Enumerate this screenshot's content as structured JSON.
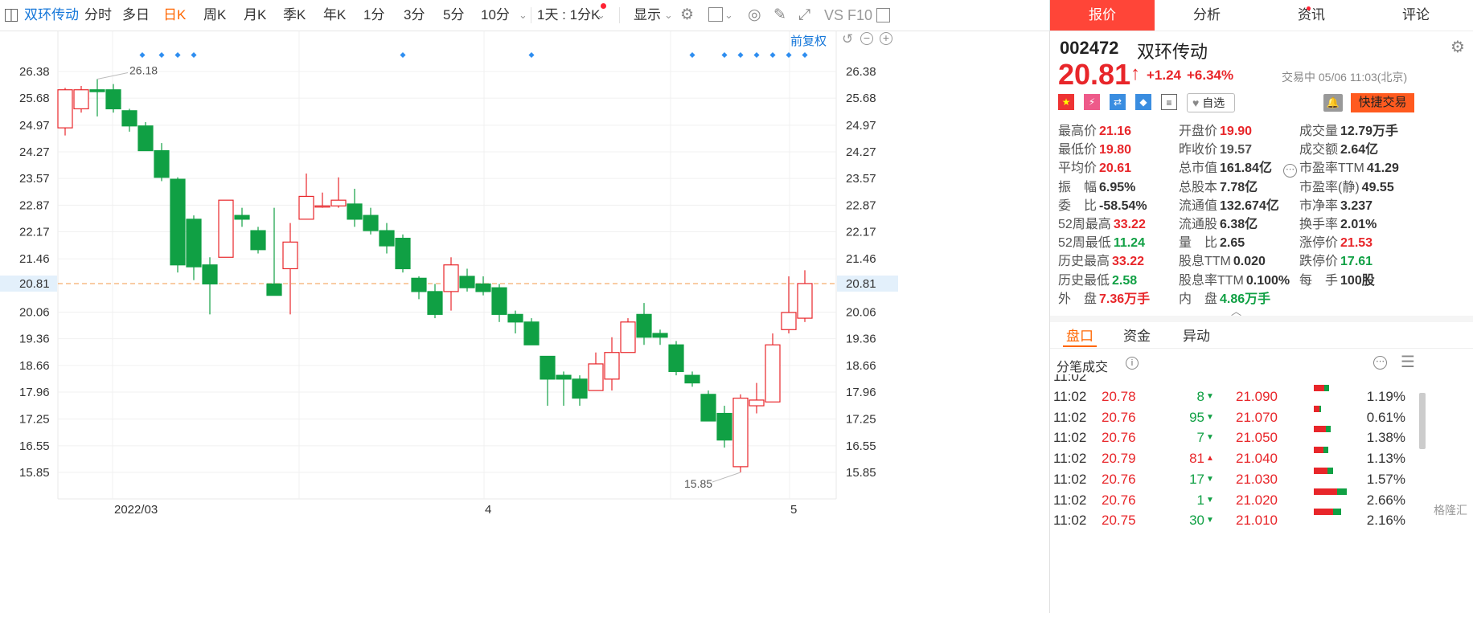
{
  "toolbar": {
    "stock_name": "双环传动",
    "periods": [
      "分时",
      "多日",
      "日K",
      "周K",
      "月K",
      "季K",
      "年K",
      "1分",
      "3分",
      "5分",
      "10分"
    ],
    "active_period": "日K",
    "interval_select": "1天 : 1分K",
    "display": "显示",
    "fq": "前复权"
  },
  "quote": {
    "code": "002472",
    "name": "双环传动",
    "price": "20.81",
    "change": "+1.24",
    "change_pct": "+6.34%",
    "status_time": "交易中 05/06 11:03(北京)",
    "watch_label": "自选",
    "quick_trade": "快捷交易",
    "up_color": "#e8262a",
    "down_color": "#10a044"
  },
  "tabs": [
    "报价",
    "分析",
    "资讯",
    "评论"
  ],
  "stats": [
    [
      {
        "label": "最高价",
        "value": "21.16",
        "c": "red"
      },
      {
        "label": "开盘价",
        "value": "19.90",
        "c": "red"
      },
      {
        "label": "成交量",
        "value": "12.79万手",
        "c": ""
      }
    ],
    [
      {
        "label": "最低价",
        "value": "19.80",
        "c": "red"
      },
      {
        "label": "昨收价",
        "value": "19.57",
        "c": "gray"
      },
      {
        "label": "成交额",
        "value": "2.64亿",
        "c": ""
      }
    ],
    [
      {
        "label": "平均价",
        "value": "20.61",
        "c": "red"
      },
      {
        "label": "总市值",
        "value": "161.84亿",
        "c": ""
      },
      {
        "label": "市盈率TTM",
        "value": "41.29",
        "c": ""
      }
    ],
    [
      {
        "label": "振　幅",
        "value": "6.95%",
        "c": ""
      },
      {
        "label": "总股本",
        "value": "7.78亿",
        "c": ""
      },
      {
        "label": "市盈率(静)",
        "value": "49.55",
        "c": ""
      }
    ],
    [
      {
        "label": "委　比",
        "value": "-58.54%",
        "c": ""
      },
      {
        "label": "流通值",
        "value": "132.674亿",
        "c": ""
      },
      {
        "label": "市净率",
        "value": "3.237",
        "c": ""
      }
    ],
    [
      {
        "label": "52周最高",
        "value": "33.22",
        "c": "red"
      },
      {
        "label": "流通股",
        "value": "6.38亿",
        "c": ""
      },
      {
        "label": "换手率",
        "value": "2.01%",
        "c": ""
      }
    ],
    [
      {
        "label": "52周最低",
        "value": "11.24",
        "c": "green"
      },
      {
        "label": "量　比",
        "value": "2.65",
        "c": ""
      },
      {
        "label": "涨停价",
        "value": "21.53",
        "c": "red"
      }
    ],
    [
      {
        "label": "历史最高",
        "value": "33.22",
        "c": "red"
      },
      {
        "label": "股息TTM",
        "value": "0.020",
        "c": ""
      },
      {
        "label": "跌停价",
        "value": "17.61",
        "c": "green"
      }
    ],
    [
      {
        "label": "历史最低",
        "value": "2.58",
        "c": "green"
      },
      {
        "label": "股息率TTM",
        "value": "0.100%",
        "c": ""
      },
      {
        "label": "每　手",
        "value": "100股",
        "c": ""
      }
    ],
    [
      {
        "label": "外　盘",
        "value": "7.36万手",
        "c": "red"
      },
      {
        "label": "内　盘",
        "value": "4.86万手",
        "c": "green"
      },
      {
        "label": "",
        "value": "",
        "c": ""
      }
    ]
  ],
  "subtabs": [
    "盘口",
    "资金",
    "异动"
  ],
  "ticks_title": "分笔成交",
  "ticks": [
    {
      "time": "11:02",
      "price": "20.78",
      "vol": "8",
      "dir": "down",
      "depth_price": "21.090",
      "depth_pct": "1.19%",
      "depth": 1.19
    },
    {
      "time": "11:02",
      "price": "20.76",
      "vol": "95",
      "dir": "down",
      "depth_price": "21.070",
      "depth_pct": "0.61%",
      "depth": 0.61
    },
    {
      "time": "11:02",
      "price": "20.76",
      "vol": "7",
      "dir": "down",
      "depth_price": "21.050",
      "depth_pct": "1.38%",
      "depth": 1.38
    },
    {
      "time": "11:02",
      "price": "20.79",
      "vol": "81",
      "dir": "up",
      "depth_price": "21.040",
      "depth_pct": "1.13%",
      "depth": 1.13
    },
    {
      "time": "11:02",
      "price": "20.76",
      "vol": "17",
      "dir": "down",
      "depth_price": "21.030",
      "depth_pct": "1.57%",
      "depth": 1.57
    },
    {
      "time": "11:02",
      "price": "20.76",
      "vol": "1",
      "dir": "down",
      "depth_price": "21.020",
      "depth_pct": "2.66%",
      "depth": 2.66
    },
    {
      "time": "11:02",
      "price": "20.75",
      "vol": "30",
      "dir": "down",
      "depth_price": "21.010",
      "depth_pct": "2.16%",
      "depth": 2.16
    }
  ],
  "watermark": "格隆汇",
  "chart_data": {
    "type": "candlestick",
    "price_ticks": [
      "26.38",
      "25.68",
      "24.97",
      "24.27",
      "23.57",
      "22.87",
      "22.17",
      "21.46",
      "20.81",
      "20.06",
      "19.36",
      "18.66",
      "17.96",
      "17.25",
      "16.55",
      "15.85"
    ],
    "current_price_label": "20.81",
    "date_labels": [
      "2022/03",
      "4",
      "5"
    ],
    "high_annotation": "26.18",
    "low_annotation": "15.85",
    "ylim": [
      15.85,
      26.38
    ],
    "candles": [
      {
        "o": 24.9,
        "h": 25.95,
        "l": 24.7,
        "c": 25.9
      },
      {
        "o": 25.4,
        "h": 26.0,
        "l": 25.3,
        "c": 25.9
      },
      {
        "o": 25.9,
        "h": 26.18,
        "l": 25.2,
        "c": 25.85
      },
      {
        "o": 25.9,
        "h": 26.05,
        "l": 25.3,
        "c": 25.4
      },
      {
        "o": 25.35,
        "h": 25.4,
        "l": 24.8,
        "c": 24.95
      },
      {
        "o": 24.95,
        "h": 25.05,
        "l": 24.3,
        "c": 24.3
      },
      {
        "o": 24.3,
        "h": 24.5,
        "l": 23.5,
        "c": 23.6
      },
      {
        "o": 23.55,
        "h": 23.6,
        "l": 21.1,
        "c": 21.3
      },
      {
        "o": 22.5,
        "h": 22.6,
        "l": 20.9,
        "c": 21.25
      },
      {
        "o": 21.3,
        "h": 21.5,
        "l": 20.0,
        "c": 20.8
      },
      {
        "o": 21.5,
        "h": 23.0,
        "l": 21.5,
        "c": 23.0
      },
      {
        "o": 22.6,
        "h": 22.8,
        "l": 22.3,
        "c": 22.5
      },
      {
        "o": 22.2,
        "h": 22.3,
        "l": 21.6,
        "c": 21.7
      },
      {
        "o": 20.8,
        "h": 22.8,
        "l": 20.5,
        "c": 20.5
      },
      {
        "o": 21.2,
        "h": 22.4,
        "l": 20.0,
        "c": 21.9
      },
      {
        "o": 22.5,
        "h": 23.7,
        "l": 22.5,
        "c": 23.1
      },
      {
        "o": 22.85,
        "h": 23.2,
        "l": 22.8,
        "c": 22.85
      },
      {
        "o": 22.85,
        "h": 23.6,
        "l": 22.8,
        "c": 23.0
      },
      {
        "o": 22.9,
        "h": 23.3,
        "l": 22.3,
        "c": 22.5
      },
      {
        "o": 22.6,
        "h": 22.8,
        "l": 22.1,
        "c": 22.2
      },
      {
        "o": 22.2,
        "h": 22.4,
        "l": 21.6,
        "c": 21.8
      },
      {
        "o": 22.0,
        "h": 22.1,
        "l": 21.1,
        "c": 21.2
      },
      {
        "o": 20.95,
        "h": 21.0,
        "l": 20.4,
        "c": 20.6
      },
      {
        "o": 20.6,
        "h": 20.8,
        "l": 19.9,
        "c": 20.0
      },
      {
        "o": 20.6,
        "h": 21.5,
        "l": 20.1,
        "c": 21.3
      },
      {
        "o": 21.0,
        "h": 21.2,
        "l": 20.6,
        "c": 20.7
      },
      {
        "o": 20.8,
        "h": 21.0,
        "l": 20.5,
        "c": 20.6
      },
      {
        "o": 20.7,
        "h": 20.8,
        "l": 19.8,
        "c": 20.0
      },
      {
        "o": 20.0,
        "h": 20.1,
        "l": 19.5,
        "c": 19.8
      },
      {
        "o": 19.8,
        "h": 19.9,
        "l": 19.2,
        "c": 19.2
      },
      {
        "o": 18.9,
        "h": 18.9,
        "l": 17.6,
        "c": 18.3
      },
      {
        "o": 18.4,
        "h": 18.5,
        "l": 17.6,
        "c": 18.3
      },
      {
        "o": 18.3,
        "h": 18.4,
        "l": 17.6,
        "c": 17.8
      },
      {
        "o": 18.0,
        "h": 19.0,
        "l": 18.0,
        "c": 18.7
      },
      {
        "o": 18.3,
        "h": 19.4,
        "l": 18.0,
        "c": 19.0
      },
      {
        "o": 19.0,
        "h": 19.9,
        "l": 19.0,
        "c": 19.8
      },
      {
        "o": 20.0,
        "h": 20.3,
        "l": 19.2,
        "c": 19.4
      },
      {
        "o": 19.5,
        "h": 19.6,
        "l": 19.2,
        "c": 19.4
      },
      {
        "o": 19.2,
        "h": 19.3,
        "l": 18.4,
        "c": 18.5
      },
      {
        "o": 18.4,
        "h": 18.5,
        "l": 18.1,
        "c": 18.2
      },
      {
        "o": 17.9,
        "h": 18.0,
        "l": 17.2,
        "c": 17.2
      },
      {
        "o": 17.4,
        "h": 17.6,
        "l": 16.5,
        "c": 16.7
      },
      {
        "o": 16.0,
        "h": 17.9,
        "l": 15.85,
        "c": 17.8
      },
      {
        "o": 17.6,
        "h": 18.2,
        "l": 17.4,
        "c": 17.75
      },
      {
        "o": 17.7,
        "h": 19.5,
        "l": 17.7,
        "c": 19.2
      },
      {
        "o": 19.6,
        "h": 21.0,
        "l": 19.5,
        "c": 20.05
      },
      {
        "o": 19.9,
        "h": 21.16,
        "l": 19.8,
        "c": 20.81
      }
    ]
  }
}
